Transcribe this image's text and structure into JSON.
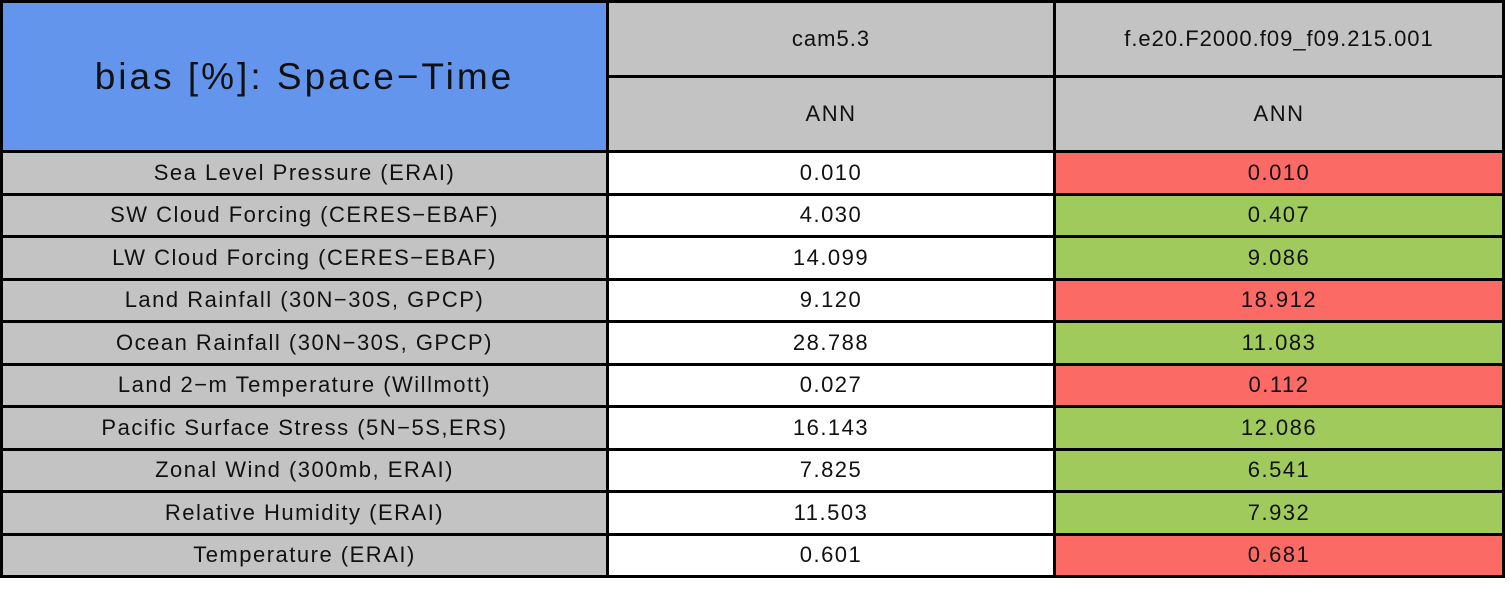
{
  "chart_data": {
    "type": "table",
    "title": "bias [%]: Space−Time",
    "columns": [
      {
        "model": "cam5.3",
        "season": "ANN"
      },
      {
        "model": "f.e20.F2000.f09_f09.215.001",
        "season": "ANN"
      }
    ],
    "rows": [
      {
        "label": "Sea Level Pressure (ERAI)",
        "values": [
          "0.010",
          "0.010"
        ],
        "flag": "worse"
      },
      {
        "label": "SW Cloud Forcing (CERES−EBAF)",
        "values": [
          "4.030",
          "0.407"
        ],
        "flag": "better"
      },
      {
        "label": "LW Cloud Forcing (CERES−EBAF)",
        "values": [
          "14.099",
          "9.086"
        ],
        "flag": "better"
      },
      {
        "label": "Land Rainfall (30N−30S, GPCP)",
        "values": [
          "9.120",
          "18.912"
        ],
        "flag": "worse"
      },
      {
        "label": "Ocean Rainfall (30N−30S, GPCP)",
        "values": [
          "28.788",
          "11.083"
        ],
        "flag": "better"
      },
      {
        "label": "Land 2−m Temperature (Willmott)",
        "values": [
          "0.027",
          "0.112"
        ],
        "flag": "worse"
      },
      {
        "label": "Pacific Surface Stress (5N−5S,ERS)",
        "values": [
          "16.143",
          "12.086"
        ],
        "flag": "better"
      },
      {
        "label": "Zonal Wind (300mb, ERAI)",
        "values": [
          "7.825",
          "6.541"
        ],
        "flag": "better"
      },
      {
        "label": "Relative Humidity (ERAI)",
        "values": [
          "11.503",
          "7.932"
        ],
        "flag": "better"
      },
      {
        "label": "Temperature (ERAI)",
        "values": [
          "0.601",
          "0.681"
        ],
        "flag": "worse"
      }
    ],
    "layout": {
      "grid": "on",
      "legend": "none"
    },
    "colors": {
      "title_bg": "#6495ED",
      "header_bg": "#C3C3C3",
      "label_bg": "#C3C3C3",
      "value_bg": "#FFFFFF",
      "worse_bg": "#FC6A66",
      "better_bg": "#A0CB5C",
      "border": "#000000",
      "text": "#111111"
    }
  }
}
